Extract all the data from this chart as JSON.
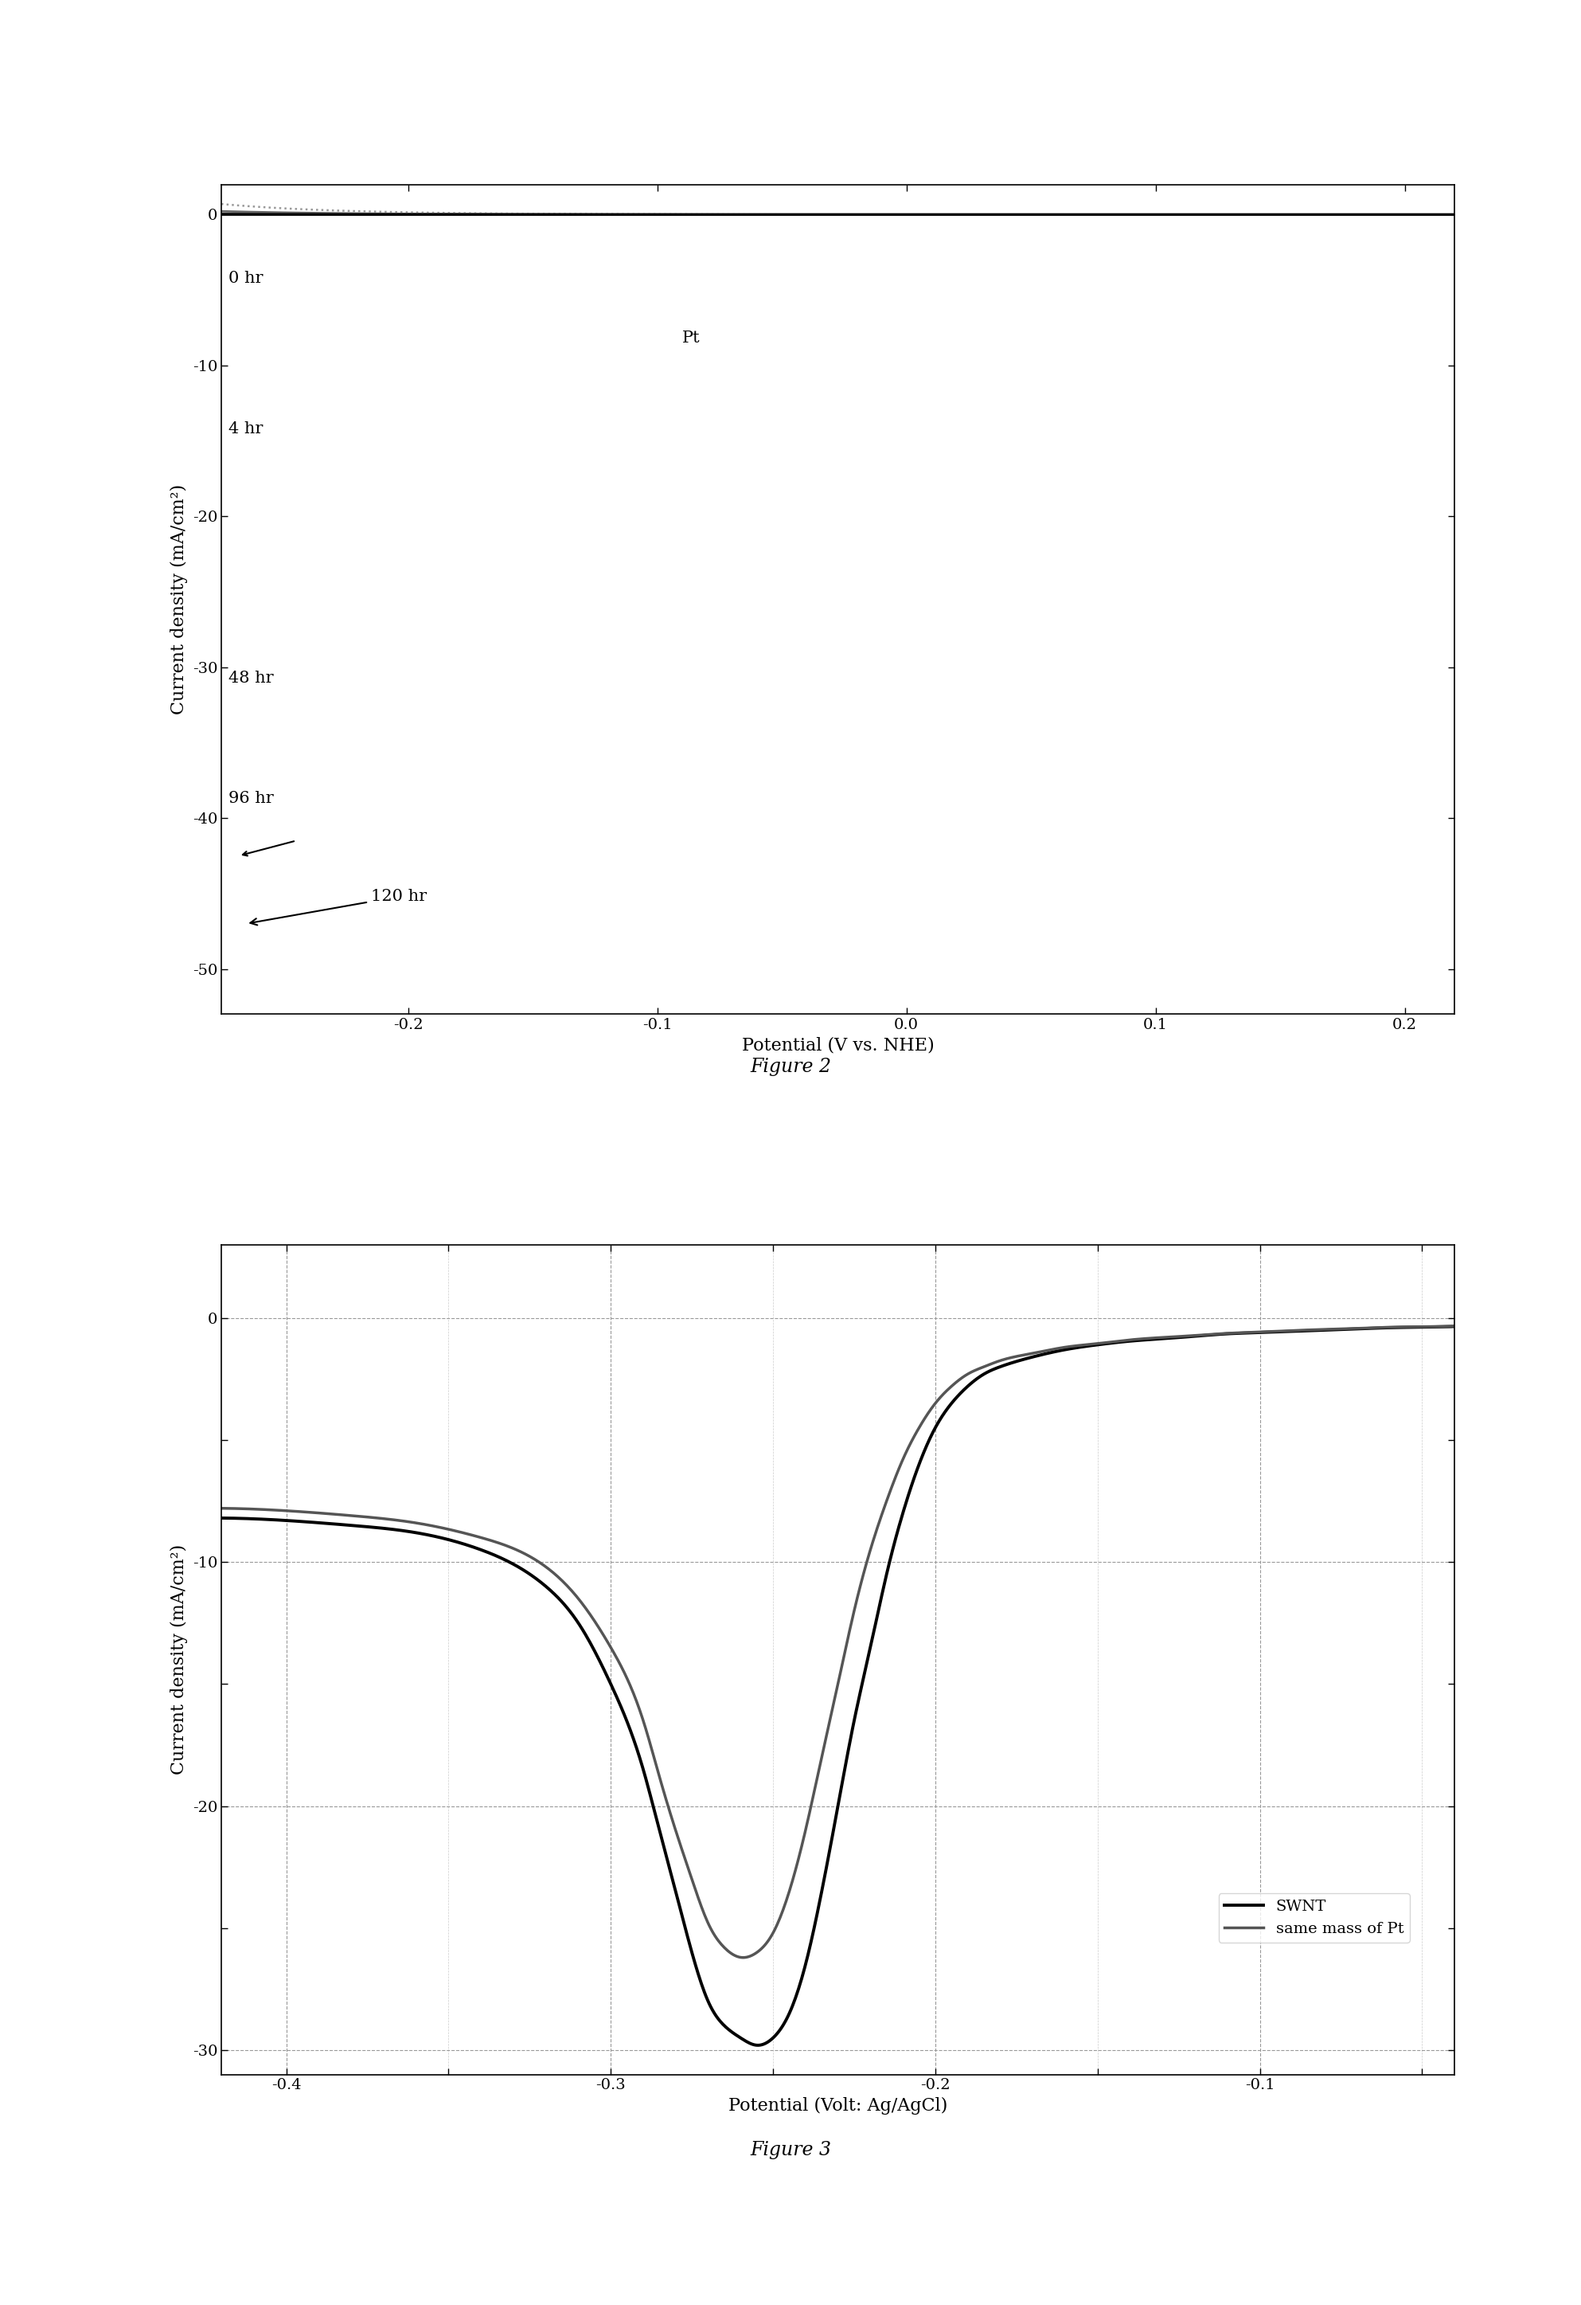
{
  "fig2": {
    "xlim": [
      -0.275,
      0.22
    ],
    "ylim": [
      -53,
      2
    ],
    "xlabel": "Potential (V vs. NHE)",
    "ylabel": "Current density (mA/cm²)",
    "caption": "Figure 2",
    "curves": [
      {
        "label": "0 hr",
        "color": "#666666",
        "lw": 2.0,
        "ls": "solid",
        "ilim": -5.0,
        "i0": 0.001,
        "alpha": 0.5,
        "E0": 0.0,
        "Vlim": -0.275
      },
      {
        "label": "Pt",
        "color": "#999999",
        "lw": 1.8,
        "ls": "dotted",
        "ilim": -6.5,
        "i0": 0.003,
        "alpha": 0.5,
        "E0": 0.0,
        "Vlim": -0.275
      },
      {
        "label": "4 hr",
        "color": "#888888",
        "lw": 2.0,
        "ls": "solid",
        "ilim": -14.0,
        "i0": 0.0003,
        "alpha": 0.5,
        "E0": 0.0,
        "Vlim": -0.275
      },
      {
        "label": "48 hr",
        "color": "#444444",
        "lw": 2.2,
        "ls": "solid",
        "ilim": -32.0,
        "i0": 0.0001,
        "alpha": 0.5,
        "E0": 0.0,
        "Vlim": -0.275
      },
      {
        "label": "96 hr",
        "color": "#222222",
        "lw": 2.2,
        "ls": "solid",
        "ilim": -42.0,
        "i0": 7e-05,
        "alpha": 0.5,
        "E0": 0.0,
        "Vlim": -0.275
      },
      {
        "label": "120 hr",
        "color": "#000000",
        "lw": 2.2,
        "ls": "solid",
        "ilim": -47.0,
        "i0": 6e-05,
        "alpha": 0.5,
        "E0": 0.0,
        "Vlim": -0.275
      }
    ]
  },
  "fig3": {
    "xlim": [
      -0.42,
      -0.04
    ],
    "ylim": [
      -31,
      3
    ],
    "xlabel": "Potential (Volt: Ag/AgCl)",
    "ylabel": "Current density (mA/cm²)",
    "caption": "Figure 3",
    "xticks": [
      -0.4,
      -0.3,
      -0.2,
      -0.1
    ],
    "yticks": [
      0,
      -10,
      -20,
      -30
    ],
    "swnt_pts": [
      [
        -0.42,
        -8.2
      ],
      [
        -0.4,
        -8.3
      ],
      [
        -0.38,
        -8.5
      ],
      [
        -0.36,
        -8.8
      ],
      [
        -0.34,
        -9.5
      ],
      [
        -0.32,
        -11.0
      ],
      [
        -0.31,
        -12.5
      ],
      [
        -0.3,
        -15.0
      ],
      [
        -0.29,
        -18.5
      ],
      [
        -0.285,
        -21.0
      ],
      [
        -0.28,
        -23.5
      ],
      [
        -0.275,
        -26.0
      ],
      [
        -0.27,
        -28.0
      ],
      [
        -0.265,
        -29.0
      ],
      [
        -0.26,
        -29.5
      ],
      [
        -0.255,
        -29.8
      ],
      [
        -0.25,
        -29.5
      ],
      [
        -0.245,
        -28.5
      ],
      [
        -0.24,
        -26.5
      ],
      [
        -0.235,
        -23.5
      ],
      [
        -0.23,
        -20.0
      ],
      [
        -0.225,
        -16.5
      ],
      [
        -0.22,
        -13.5
      ],
      [
        -0.215,
        -10.5
      ],
      [
        -0.21,
        -8.0
      ],
      [
        -0.205,
        -6.0
      ],
      [
        -0.2,
        -4.5
      ],
      [
        -0.195,
        -3.5
      ],
      [
        -0.19,
        -2.8
      ],
      [
        -0.185,
        -2.3
      ],
      [
        -0.18,
        -2.0
      ],
      [
        -0.17,
        -1.6
      ],
      [
        -0.16,
        -1.3
      ],
      [
        -0.15,
        -1.1
      ],
      [
        -0.14,
        -0.95
      ],
      [
        -0.13,
        -0.85
      ],
      [
        -0.12,
        -0.75
      ],
      [
        -0.11,
        -0.65
      ],
      [
        -0.1,
        -0.6
      ],
      [
        -0.09,
        -0.55
      ],
      [
        -0.08,
        -0.5
      ],
      [
        -0.07,
        -0.45
      ],
      [
        -0.06,
        -0.4
      ],
      [
        -0.05,
        -0.38
      ],
      [
        -0.04,
        -0.35
      ]
    ],
    "ptmass_pts": [
      [
        -0.42,
        -7.8
      ],
      [
        -0.4,
        -7.9
      ],
      [
        -0.38,
        -8.1
      ],
      [
        -0.36,
        -8.4
      ],
      [
        -0.34,
        -9.0
      ],
      [
        -0.32,
        -10.2
      ],
      [
        -0.31,
        -11.5
      ],
      [
        -0.3,
        -13.5
      ],
      [
        -0.29,
        -16.5
      ],
      [
        -0.285,
        -18.8
      ],
      [
        -0.28,
        -21.0
      ],
      [
        -0.275,
        -23.0
      ],
      [
        -0.27,
        -24.8
      ],
      [
        -0.265,
        -25.8
      ],
      [
        -0.26,
        -26.2
      ],
      [
        -0.255,
        -26.0
      ],
      [
        -0.25,
        -25.2
      ],
      [
        -0.245,
        -23.5
      ],
      [
        -0.24,
        -21.0
      ],
      [
        -0.235,
        -18.0
      ],
      [
        -0.23,
        -15.0
      ],
      [
        -0.225,
        -12.0
      ],
      [
        -0.22,
        -9.5
      ],
      [
        -0.215,
        -7.5
      ],
      [
        -0.21,
        -5.8
      ],
      [
        -0.205,
        -4.5
      ],
      [
        -0.2,
        -3.5
      ],
      [
        -0.195,
        -2.8
      ],
      [
        -0.19,
        -2.3
      ],
      [
        -0.185,
        -2.0
      ],
      [
        -0.18,
        -1.75
      ],
      [
        -0.17,
        -1.45
      ],
      [
        -0.16,
        -1.2
      ],
      [
        -0.15,
        -1.05
      ],
      [
        -0.14,
        -0.9
      ],
      [
        -0.13,
        -0.8
      ],
      [
        -0.12,
        -0.72
      ],
      [
        -0.11,
        -0.63
      ],
      [
        -0.1,
        -0.58
      ],
      [
        -0.09,
        -0.52
      ],
      [
        -0.08,
        -0.47
      ],
      [
        -0.07,
        -0.43
      ],
      [
        -0.06,
        -0.38
      ],
      [
        -0.05,
        -0.36
      ],
      [
        -0.04,
        -0.33
      ]
    ]
  }
}
